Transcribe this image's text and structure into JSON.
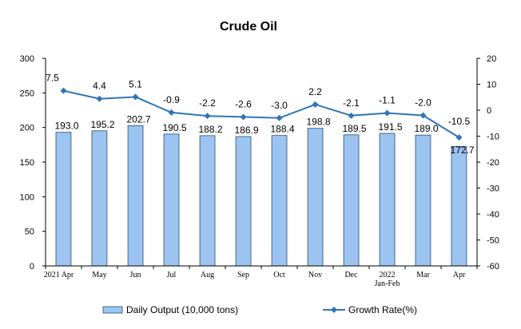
{
  "chart_data": {
    "type": "bar",
    "title": "Crude Oil",
    "categories": [
      "2021 Apr",
      "May",
      "Jun",
      "Jul",
      "Aug",
      "Sep",
      "Oct",
      "Nov",
      "Dec",
      "2022 Jan-Feb",
      "Mar",
      "Apr"
    ],
    "category_lines": [
      [
        "2021  Apr"
      ],
      [
        "May"
      ],
      [
        "Jun"
      ],
      [
        "Jul"
      ],
      [
        "Aug"
      ],
      [
        "Sep"
      ],
      [
        "Oct"
      ],
      [
        "Nov"
      ],
      [
        "Dec"
      ],
      [
        "2022",
        "Jan-Feb"
      ],
      [
        "Mar"
      ],
      [
        "Apr"
      ]
    ],
    "series": [
      {
        "name": "Daily Output (10,000 tons)",
        "type": "bar",
        "axis": "left",
        "values": [
          193.0,
          195.2,
          202.7,
          190.5,
          188.2,
          186.9,
          188.4,
          198.8,
          189.5,
          191.5,
          189.0,
          172.7
        ],
        "labels": [
          "193.0",
          "195.2",
          "202.7",
          "190.5",
          "188.2",
          "186.9",
          "188.4",
          "198.8",
          "189.5",
          "191.5",
          "189.0",
          "172.7"
        ],
        "color": "#9dc3f0",
        "border_color": "#1f4e79"
      },
      {
        "name": "Growth Rate(%)",
        "type": "line",
        "axis": "right",
        "values": [
          7.5,
          4.4,
          5.1,
          -0.9,
          -2.2,
          -2.6,
          -3.0,
          2.2,
          -2.1,
          -1.1,
          -2.0,
          -10.5
        ],
        "labels": [
          "7.5",
          "4.4",
          "5.1",
          "-0.9",
          "-2.2",
          "-2.6",
          "-3.0",
          "2.2",
          "-2.1",
          "-1.1",
          "-2.0",
          "-10.5"
        ],
        "color": "#2e75b6"
      }
    ],
    "y_left": {
      "range": [
        0,
        300
      ],
      "ticks": [
        0,
        50,
        100,
        150,
        200,
        250,
        300
      ]
    },
    "y_right": {
      "range": [
        -60,
        20
      ],
      "ticks": [
        -60,
        -50,
        -40,
        -30,
        -20,
        -10,
        0,
        10,
        20
      ]
    },
    "grid": false,
    "legend_position": "bottom"
  }
}
